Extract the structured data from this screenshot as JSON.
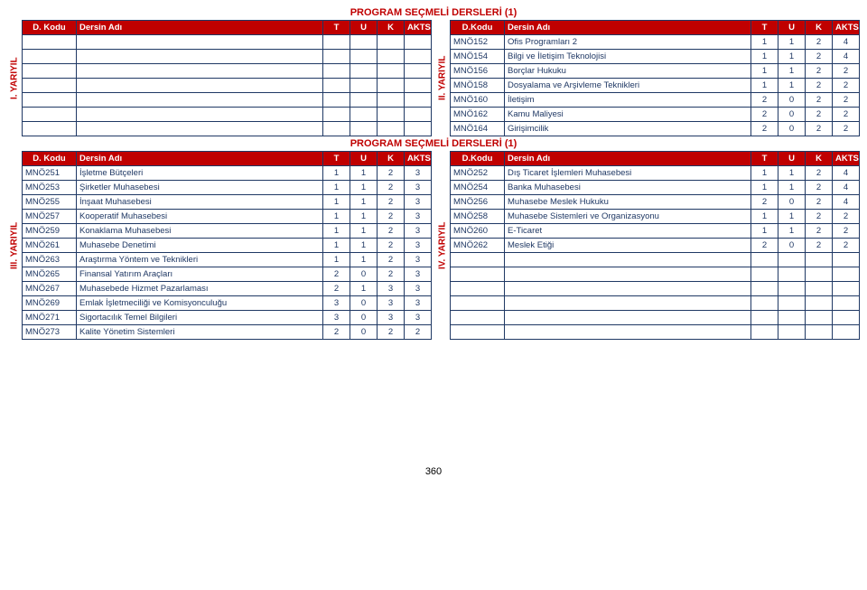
{
  "titles": {
    "main": "PROGRAM SEÇMELİ DERSLERİ (1)",
    "mid": "PROGRAM SEÇMELİ DERSLERİ (1)"
  },
  "headers": {
    "left": {
      "code": "D. Kodu",
      "name": "Dersin Adı",
      "t": "T",
      "u": "U",
      "k": "K",
      "akts": "AKTS"
    },
    "right": {
      "code": "D.Kodu",
      "name": "Dersin Adı",
      "t": "T",
      "u": "U",
      "k": "K",
      "akts": "AKTS"
    }
  },
  "sem_labels": {
    "s1": "I. YARIYIL",
    "s2": "II. YARIYIL",
    "s3": "III. YARIYIL",
    "s4": "IV. YARIYIL"
  },
  "sem1_rows": [
    [
      "",
      "",
      "",
      "",
      "",
      ""
    ],
    [
      "",
      "",
      "",
      "",
      "",
      ""
    ],
    [
      "",
      "",
      "",
      "",
      "",
      ""
    ],
    [
      "",
      "",
      "",
      "",
      "",
      ""
    ],
    [
      "",
      "",
      "",
      "",
      "",
      ""
    ],
    [
      "",
      "",
      "",
      "",
      "",
      ""
    ],
    [
      "",
      "",
      "",
      "",
      "",
      ""
    ]
  ],
  "sem2_rows": [
    [
      "MNÖ152",
      "Ofis Programları 2",
      "1",
      "1",
      "2",
      "4"
    ],
    [
      "MNÖ154",
      "Bilgi ve İletişim Teknolojisi",
      "1",
      "1",
      "2",
      "4"
    ],
    [
      "MNÖ156",
      "Borçlar Hukuku",
      "1",
      "1",
      "2",
      "2"
    ],
    [
      "MNÖ158",
      "Dosyalama ve Arşivleme Teknikleri",
      "1",
      "1",
      "2",
      "2"
    ],
    [
      "MNÖ160",
      "İletişim",
      "2",
      "0",
      "2",
      "2"
    ],
    [
      "MNÖ162",
      "Kamu Maliyesi",
      "2",
      "0",
      "2",
      "2"
    ],
    [
      "MNÖ164",
      "Girişimcilik",
      "2",
      "0",
      "2",
      "2"
    ]
  ],
  "sem3_rows": [
    [
      "MNÖ251",
      "İşletme Bütçeleri",
      "1",
      "1",
      "2",
      "3"
    ],
    [
      "MNÖ253",
      "Şirketler Muhasebesi",
      "1",
      "1",
      "2",
      "3"
    ],
    [
      "MNÖ255",
      "İnşaat Muhasebesi",
      "1",
      "1",
      "2",
      "3"
    ],
    [
      "MNÖ257",
      "Kooperatif Muhasebesi",
      "1",
      "1",
      "2",
      "3"
    ],
    [
      "MNÖ259",
      "Konaklama Muhasebesi",
      "1",
      "1",
      "2",
      "3"
    ],
    [
      "MNÖ261",
      "Muhasebe Denetimi",
      "1",
      "1",
      "2",
      "3"
    ],
    [
      "MNÖ263",
      "Araştırma Yöntem ve Teknikleri",
      "1",
      "1",
      "2",
      "3"
    ],
    [
      "MNÖ265",
      "Finansal Yatırım Araçları",
      "2",
      "0",
      "2",
      "3"
    ],
    [
      "MNÖ267",
      "Muhasebede Hizmet Pazarlaması",
      "2",
      "1",
      "3",
      "3"
    ],
    [
      "MNÖ269",
      "Emlak İşletmeciliği ve Komisyonculuğu",
      "3",
      "0",
      "3",
      "3"
    ],
    [
      "MNÖ271",
      "Sigortacılık Temel Bilgileri",
      "3",
      "0",
      "3",
      "3"
    ],
    [
      "MNÖ273",
      "Kalite Yönetim Sistemleri",
      "2",
      "0",
      "2",
      "2"
    ]
  ],
  "sem4_rows": [
    [
      "MNÖ252",
      "Dış Ticaret İşlemleri Muhasebesi",
      "1",
      "1",
      "2",
      "4"
    ],
    [
      "MNÖ254",
      "Banka Muhasebesi",
      "1",
      "1",
      "2",
      "4"
    ],
    [
      "MNÖ256",
      "Muhasebe Meslek Hukuku",
      "2",
      "0",
      "2",
      "4"
    ],
    [
      "MNÖ258",
      "Muhasebe Sistemleri ve Organizasyonu",
      "1",
      "1",
      "2",
      "2"
    ],
    [
      "MNÖ260",
      "E-Ticaret",
      "1",
      "1",
      "2",
      "2"
    ],
    [
      "MNÖ262",
      "Meslek Etiği",
      "2",
      "0",
      "2",
      "2"
    ],
    [
      "",
      "",
      "",
      "",
      "",
      ""
    ],
    [
      "",
      "",
      "",
      "",
      "",
      ""
    ],
    [
      "",
      "",
      "",
      "",
      "",
      ""
    ],
    [
      "",
      "",
      "",
      "",
      "",
      ""
    ],
    [
      "",
      "",
      "",
      "",
      "",
      ""
    ],
    [
      "",
      "",
      "",
      "",
      "",
      ""
    ]
  ],
  "page_number": "360",
  "style": {
    "header_bg": "#c00000",
    "header_fg": "#ffffff",
    "border_color": "#1f3864",
    "text_color": "#1f3864",
    "title_color": "#c00000",
    "font_size_pt": 9.5
  }
}
